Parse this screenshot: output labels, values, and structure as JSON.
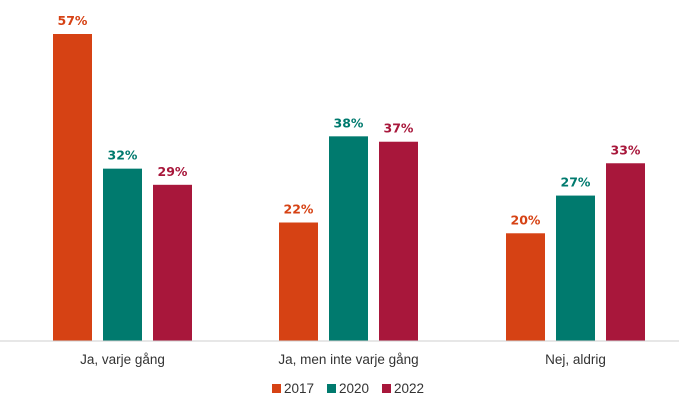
{
  "chart_data": {
    "type": "bar",
    "categories": [
      "Ja, varje gång",
      "Ja, men inte varje gång",
      "Nej, aldrig"
    ],
    "series": [
      {
        "name": "2017",
        "color": "#d64214",
        "values": [
          57,
          22,
          20
        ]
      },
      {
        "name": "2020",
        "color": "#007a6e",
        "values": [
          32,
          38,
          27
        ]
      },
      {
        "name": "2022",
        "color": "#a8173b",
        "values": [
          29,
          37,
          33
        ]
      }
    ],
    "value_suffix": "%",
    "title": "",
    "xlabel": "",
    "ylabel": "",
    "ylim": [
      0,
      57
    ],
    "grid": false,
    "legend_position": "bottom"
  }
}
